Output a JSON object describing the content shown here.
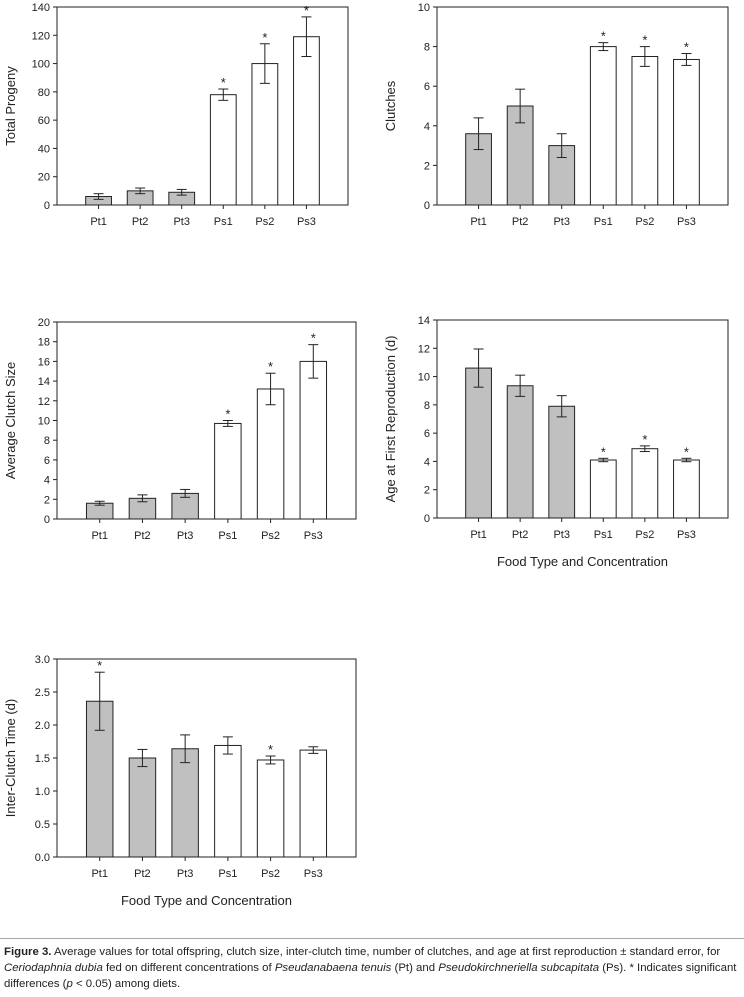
{
  "figure": {
    "caption": {
      "figure_label": "Figure 3.",
      "t1": " Average values for total offspring, clutch size, inter-clutch time, number of clutches, and age at first reproduction ± standard error, for ",
      "i1": "Ceriodaphnia dubia",
      "t2": " fed on different concentrations of ",
      "i2": "Pseudanabaena tenuis",
      "t3": " (Pt) and ",
      "i3": "Pseudokirchneriella subcapitata",
      "t4": " (Ps). * Indicates significant differences (",
      "i4": "p",
      "t5": " < 0.05) among diets."
    }
  },
  "colors": {
    "pt_fill": "#c0c0c0",
    "ps_fill": "#ffffff",
    "stroke": "#222222"
  },
  "chart_data": [
    {
      "id": "total-progeny",
      "type": "bar",
      "categories": [
        "Pt1",
        "Pt2",
        "Pt3",
        "Ps1",
        "Ps2",
        "Ps3"
      ],
      "values": [
        6,
        10,
        9,
        78,
        100,
        119
      ],
      "errors": [
        2,
        2,
        2,
        4,
        14,
        14
      ],
      "significant": [
        false,
        false,
        false,
        true,
        true,
        true
      ],
      "ylabel": "Total Progeny",
      "xlabel": "",
      "ylim": [
        0,
        140
      ],
      "yticks": [
        0,
        20,
        40,
        60,
        80,
        100,
        120,
        140
      ],
      "ytick_labels": [
        "0",
        "20",
        "40",
        "60",
        "80",
        "100",
        "120",
        "140"
      ]
    },
    {
      "id": "clutches",
      "type": "bar",
      "categories": [
        "Pt1",
        "Pt2",
        "Pt3",
        "Ps1",
        "Ps2",
        "Ps3"
      ],
      "values": [
        3.6,
        5.0,
        3.0,
        8.0,
        7.5,
        7.35
      ],
      "errors": [
        0.8,
        0.85,
        0.6,
        0.2,
        0.5,
        0.3
      ],
      "significant": [
        false,
        false,
        false,
        true,
        true,
        true
      ],
      "ylabel": "Clutches",
      "xlabel": "",
      "ylim": [
        0,
        10
      ],
      "yticks": [
        0,
        2,
        4,
        6,
        8,
        10
      ],
      "ytick_labels": [
        "0",
        "2",
        "4",
        "6",
        "8",
        "10"
      ]
    },
    {
      "id": "average-clutch-size",
      "type": "bar",
      "categories": [
        "Pt1",
        "Pt2",
        "Pt3",
        "Ps1",
        "Ps2",
        "Ps3"
      ],
      "values": [
        1.6,
        2.1,
        2.6,
        9.7,
        13.2,
        16.0
      ],
      "errors": [
        0.2,
        0.35,
        0.4,
        0.3,
        1.6,
        1.7
      ],
      "significant": [
        false,
        false,
        false,
        true,
        true,
        true
      ],
      "ylabel": "Average Clutch Size",
      "xlabel": "",
      "ylim": [
        0,
        20
      ],
      "yticks": [
        0,
        2,
        4,
        6,
        8,
        10,
        12,
        14,
        16,
        18,
        20
      ],
      "ytick_labels": [
        "0",
        "2",
        "4",
        "6",
        "8",
        "10",
        "12",
        "14",
        "16",
        "18",
        "20"
      ]
    },
    {
      "id": "age-at-first-reproduction",
      "type": "bar",
      "categories": [
        "Pt1",
        "Pt2",
        "Pt3",
        "Ps1",
        "Ps2",
        "Ps3"
      ],
      "values": [
        10.6,
        9.35,
        7.9,
        4.1,
        4.9,
        4.1
      ],
      "errors": [
        1.35,
        0.75,
        0.75,
        0.12,
        0.2,
        0.12
      ],
      "significant": [
        false,
        false,
        false,
        true,
        true,
        true
      ],
      "ylabel": "Age at First Reproduction (d)",
      "xlabel": "Food Type and Concentration",
      "ylim": [
        0,
        14
      ],
      "yticks": [
        0,
        2,
        4,
        6,
        8,
        10,
        12,
        14
      ],
      "ytick_labels": [
        "0",
        "2",
        "4",
        "6",
        "8",
        "10",
        "12",
        "14"
      ]
    },
    {
      "id": "inter-clutch-time",
      "type": "bar",
      "categories": [
        "Pt1",
        "Pt2",
        "Pt3",
        "Ps1",
        "Ps2",
        "Ps3"
      ],
      "values": [
        2.36,
        1.5,
        1.64,
        1.69,
        1.47,
        1.62
      ],
      "errors": [
        0.44,
        0.13,
        0.21,
        0.13,
        0.06,
        0.05
      ],
      "significant": [
        true,
        false,
        false,
        false,
        true,
        false
      ],
      "ylabel": "Inter-Clutch Time (d)",
      "xlabel": "Food Type and Concentration",
      "ylim": [
        0,
        3.0
      ],
      "yticks": [
        0,
        0.5,
        1.0,
        1.5,
        2.0,
        2.5,
        3.0
      ],
      "ytick_labels": [
        "0.0",
        "0.5",
        "1.0",
        "1.5",
        "2.0",
        "2.5",
        "3.0"
      ]
    }
  ]
}
